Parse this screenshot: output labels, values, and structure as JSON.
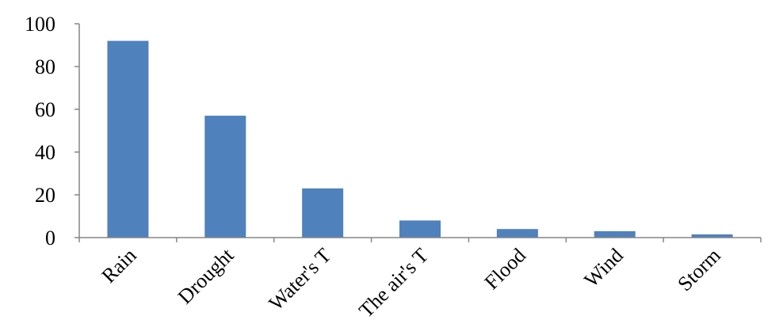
{
  "chart_data": {
    "type": "bar",
    "title": "",
    "xlabel": "",
    "ylabel": "",
    "categories": [
      "Rain",
      "Drought",
      "Water's T",
      "The air's T",
      "Flood",
      "Wind",
      "Storm"
    ],
    "values": [
      92,
      57,
      23,
      8,
      4,
      3,
      1.5
    ],
    "ylim": [
      0,
      100
    ],
    "yticks": [
      0,
      20,
      40,
      60,
      80,
      100
    ],
    "grid": false,
    "legend": "none",
    "bar_color": "#4F81BD",
    "axis_color": "#868686"
  }
}
